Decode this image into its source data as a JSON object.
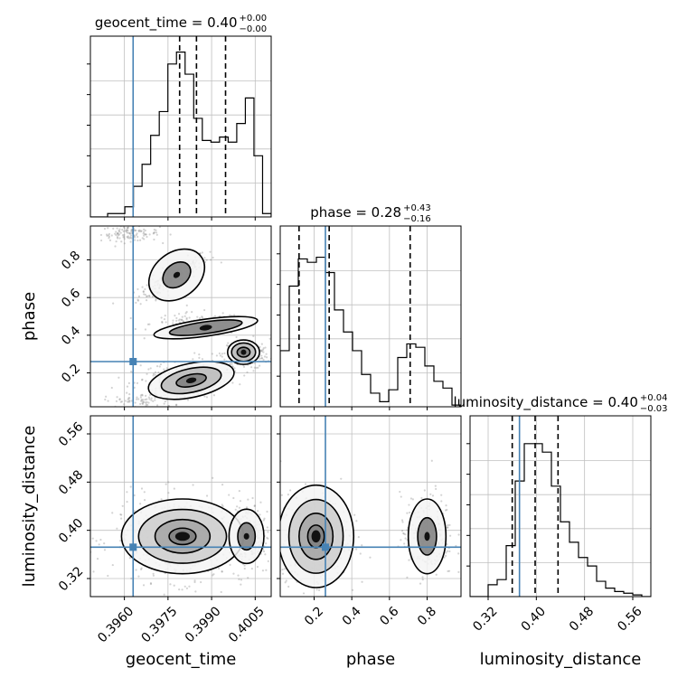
{
  "chart_data": {
    "type": "corner",
    "grid": true,
    "colors": {
      "truth": "#4682b4",
      "hist": "#000000",
      "contour": "#000000",
      "points": "#808080",
      "grid": "#c0c0c0",
      "quantile": "#000000"
    },
    "parameters": [
      {
        "name": "geocent_time",
        "label": "geocent_time",
        "range": [
          0.39483,
          0.40105
        ],
        "ticks": [
          0.396,
          0.3975,
          0.399,
          0.4005
        ],
        "tick_labels": [
          "0.3960",
          "0.3975",
          "0.3990",
          "0.4005"
        ],
        "truth": 0.3963,
        "quantiles": [
          0.3979,
          0.39848,
          0.39948
        ],
        "title_main": "geocent_time = 0.40",
        "title_sup": "+0.00",
        "title_sub": "−0.00",
        "hist": [
          0,
          0,
          0.02,
          0.02,
          0.06,
          0.18,
          0.31,
          0.48,
          0.62,
          0.9,
          0.97,
          0.84,
          0.58,
          0.45,
          0.44,
          0.47,
          0.44,
          0.55,
          0.7,
          0.36,
          0.02
        ]
      },
      {
        "name": "phase",
        "label": "phase",
        "range": [
          0.02,
          0.98
        ],
        "ticks": [
          0.2,
          0.4,
          0.6,
          0.8
        ],
        "tick_labels": [
          "0.2",
          "0.4",
          "0.6",
          "0.8"
        ],
        "truth": 0.26,
        "quantiles": [
          0.12,
          0.28,
          0.71
        ],
        "title_main": "phase = 0.28",
        "title_sup": "+0.43",
        "title_sub": "−0.16",
        "hist": [
          0.33,
          0.71,
          0.87,
          0.85,
          0.88,
          0.79,
          0.57,
          0.44,
          0.33,
          0.19,
          0.08,
          0.03,
          0.1,
          0.29,
          0.37,
          0.35,
          0.24,
          0.15,
          0.11,
          0.01
        ]
      },
      {
        "name": "luminosity_distance",
        "label": "luminosity_distance",
        "range": [
          0.29,
          0.59
        ],
        "ticks": [
          0.32,
          0.4,
          0.48,
          0.56
        ],
        "tick_labels": [
          "0.32",
          "0.40",
          "0.48",
          "0.56"
        ],
        "truth": 0.372,
        "quantiles": [
          0.36,
          0.398,
          0.436
        ],
        "title_main": "luminosity_distance = 0.40",
        "title_sup": "+0.04",
        "title_sub": "−0.03",
        "hist": [
          0,
          0,
          0.07,
          0.1,
          0.3,
          0.68,
          0.9,
          0.9,
          0.85,
          0.65,
          0.44,
          0.32,
          0.23,
          0.18,
          0.09,
          0.05,
          0.03,
          0.02,
          0.01,
          0
        ]
      }
    ]
  }
}
